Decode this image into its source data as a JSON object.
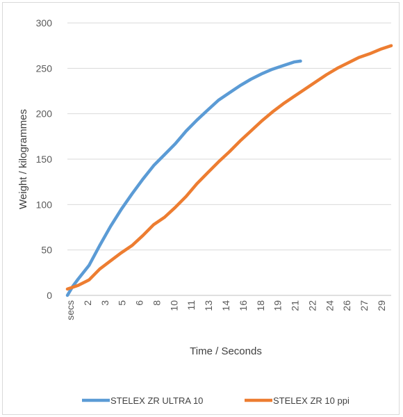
{
  "chart_data": {
    "type": "line",
    "title": "",
    "xlabel": "Time / Seconds",
    "ylabel": "Weight / kilogrammes",
    "ylim": [
      0,
      300
    ],
    "yticks": [
      0,
      50,
      100,
      150,
      200,
      250,
      300
    ],
    "x_category_labels": [
      "secs",
      "2",
      "3",
      "5",
      "6",
      "8",
      "10",
      "11",
      "13",
      "14",
      "16",
      "18",
      "19",
      "21",
      "22",
      "24",
      "26",
      "27",
      "29"
    ],
    "x_range_seconds": [
      0,
      30
    ],
    "grid": true,
    "legend": "bottom",
    "series": [
      {
        "name": "STELEX ZR ULTRA 10",
        "color": "#5b9bd5",
        "x": [
          0,
          0.5,
          1,
          2,
          3,
          4,
          5,
          6,
          7,
          8,
          9,
          10,
          11,
          12,
          13,
          14,
          15,
          16,
          17,
          18,
          19,
          20,
          21,
          21.6
        ],
        "y": [
          0,
          10,
          18,
          33,
          55,
          76,
          95,
          112,
          128,
          143,
          155,
          167,
          181,
          193,
          204,
          215,
          223,
          231,
          238,
          244,
          249,
          253,
          257,
          258
        ]
      },
      {
        "name": "STELEX ZR 10 ppi",
        "color": "#ed7d31",
        "x": [
          0,
          0.5,
          1,
          2,
          3,
          4,
          5,
          6,
          7,
          8,
          9,
          10,
          11,
          12,
          13,
          14,
          15,
          16,
          17,
          18,
          19,
          20,
          21,
          22,
          23,
          24,
          25,
          26,
          27,
          28,
          29,
          30
        ],
        "y": [
          7,
          9,
          11,
          17,
          29,
          38,
          47,
          55,
          66,
          78,
          86,
          97,
          109,
          123,
          135,
          147,
          158,
          170,
          181,
          192,
          202,
          211,
          219,
          227,
          235,
          243,
          250,
          256,
          262,
          266,
          271,
          275
        ]
      }
    ]
  }
}
